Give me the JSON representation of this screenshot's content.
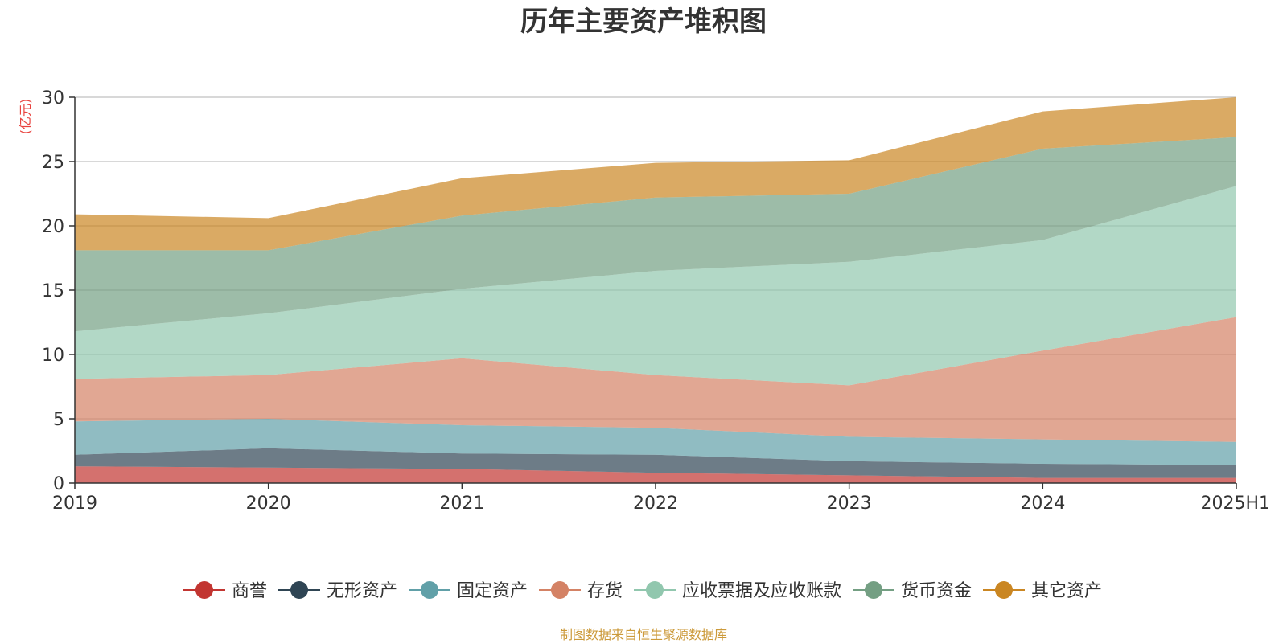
{
  "chart_data": {
    "type": "area",
    "title": "历年主要资产堆积图",
    "unit_label": "(亿元)",
    "source": "制图数据来自恒生聚源数据库",
    "x": [
      "2019",
      "2020",
      "2021",
      "2022",
      "2023",
      "2024",
      "2025H1"
    ],
    "ylim": [
      0,
      30
    ],
    "yticks": [
      0,
      5,
      10,
      15,
      20,
      25,
      30
    ],
    "grid": true,
    "stacked": true,
    "legend_position": "bottom",
    "series": [
      {
        "name": "商誉",
        "color": "#c23531",
        "values": [
          1.3,
          1.2,
          1.1,
          0.8,
          0.6,
          0.4,
          0.4
        ]
      },
      {
        "name": "无形资产",
        "color": "#2f4554",
        "values": [
          0.9,
          1.5,
          1.2,
          1.4,
          1.1,
          1.1,
          1.0
        ]
      },
      {
        "name": "固定资产",
        "color": "#61a0a8",
        "values": [
          2.6,
          2.3,
          2.2,
          2.1,
          1.9,
          1.9,
          1.8
        ]
      },
      {
        "name": "存货",
        "color": "#d48265",
        "values": [
          3.3,
          3.4,
          5.2,
          4.1,
          4.0,
          6.9,
          9.7
        ]
      },
      {
        "name": "应收票据及应收账款",
        "color": "#91c7ae",
        "values": [
          3.7,
          4.8,
          5.4,
          8.1,
          9.6,
          8.6,
          10.2
        ]
      },
      {
        "name": "货币资金",
        "color": "#749f83",
        "values": [
          6.3,
          4.9,
          5.7,
          5.7,
          5.3,
          7.1,
          3.8
        ]
      },
      {
        "name": "其它资产",
        "color": "#ca8622",
        "values": [
          2.8,
          2.5,
          2.9,
          2.7,
          2.6,
          2.9,
          3.1
        ]
      }
    ]
  }
}
